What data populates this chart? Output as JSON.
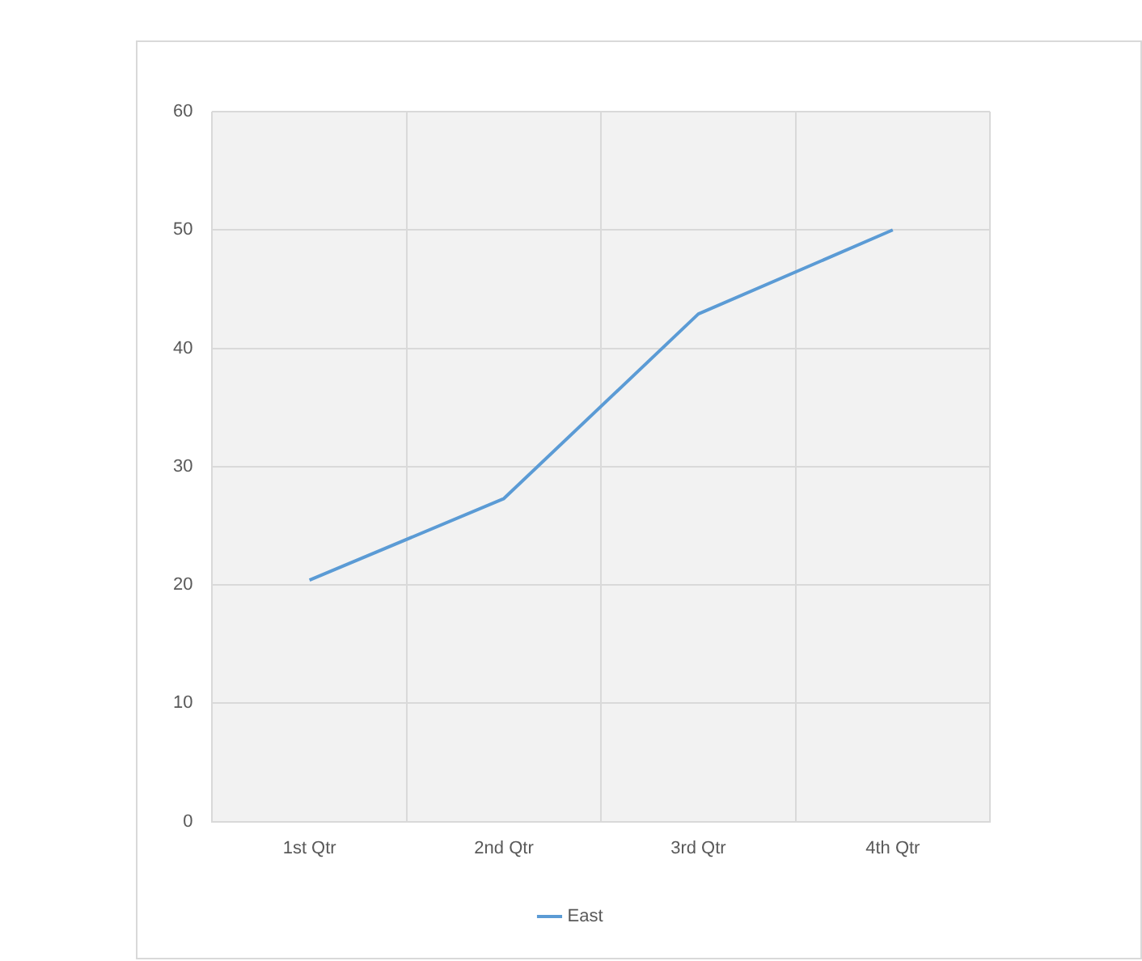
{
  "chart_data": {
    "type": "line",
    "categories": [
      "1st Qtr",
      "2nd Qtr",
      "3rd Qtr",
      "4th Qtr"
    ],
    "series": [
      {
        "name": "East",
        "color": "#5b9bd5",
        "values": [
          20.4,
          27.3,
          42.9,
          50
        ]
      }
    ],
    "ylim": [
      0,
      60
    ],
    "yticks": [
      0,
      10,
      20,
      30,
      40,
      50,
      60
    ],
    "grid": true,
    "legend": "bottom",
    "marker": "none",
    "line_style": "solid"
  }
}
